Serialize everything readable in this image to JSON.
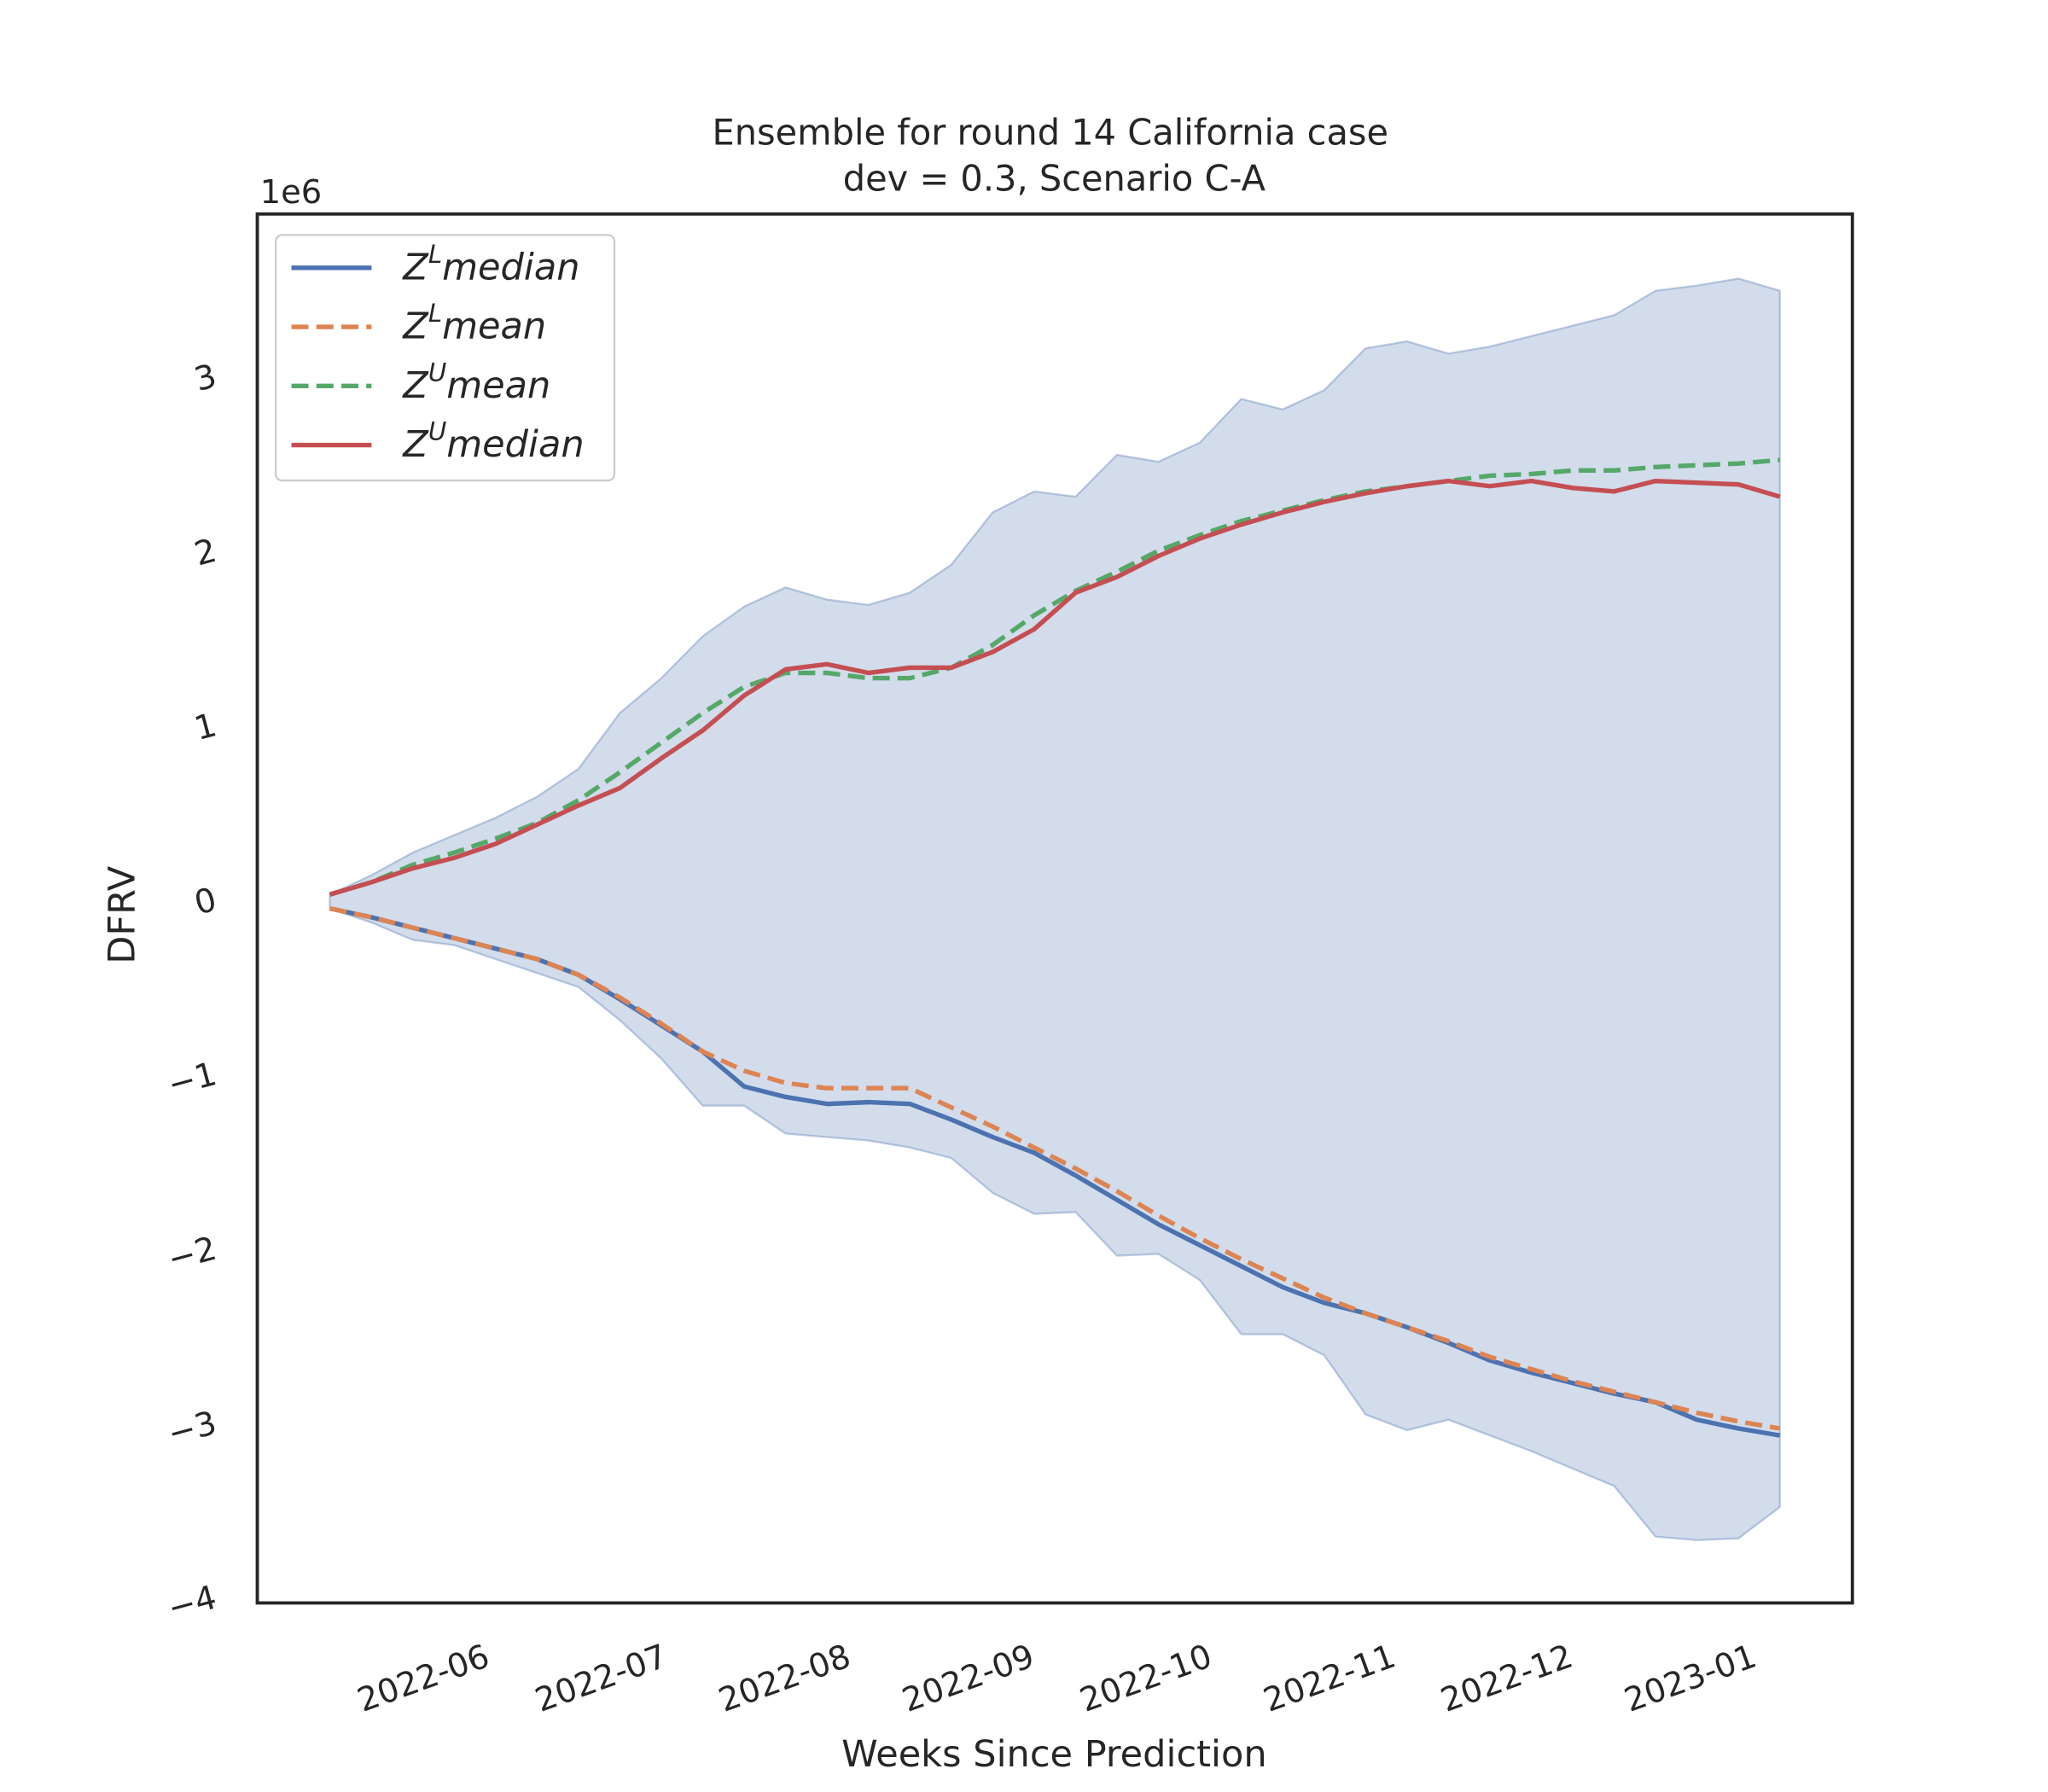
{
  "chart_data": {
    "type": "line",
    "title": [
      "Ensemble for round 14 California case",
      "dev = 0.3, Scenario C-A"
    ],
    "x_label": "Weeks Since Prediction",
    "y_label": "DFRV",
    "y_offset_label": "1e6",
    "x": [
      0,
      1,
      2,
      3,
      4,
      5,
      6,
      7,
      8,
      9,
      10,
      11,
      12,
      13,
      14,
      15,
      16,
      17,
      18,
      19,
      20,
      21,
      22,
      23,
      24,
      25,
      26,
      27,
      28,
      29,
      30,
      31,
      32,
      33,
      34,
      35
    ],
    "xlim": [
      -1.75,
      36.75
    ],
    "xticks": [
      {
        "value": 3.83,
        "label": "2022-06"
      },
      {
        "value": 8.12,
        "label": "2022-07"
      },
      {
        "value": 12.55,
        "label": "2022-08"
      },
      {
        "value": 16.98,
        "label": "2022-09"
      },
      {
        "value": 21.27,
        "label": "2022-10"
      },
      {
        "value": 25.7,
        "label": "2022-11"
      },
      {
        "value": 29.98,
        "label": "2022-12"
      },
      {
        "value": 34.41,
        "label": "2023-01"
      }
    ],
    "ylim": [
      -4,
      3.96
    ],
    "yticks": [
      {
        "value": -4,
        "label": "−4"
      },
      {
        "value": -3,
        "label": "−3"
      },
      {
        "value": -2,
        "label": "−2"
      },
      {
        "value": -1,
        "label": "−1"
      },
      0,
      1,
      2,
      3
    ],
    "grid": false,
    "legend": "upper left",
    "band": {
      "color": "#4c72b0",
      "alpha": 0.25,
      "upper": [
        0.06,
        0.17,
        0.3,
        0.4,
        0.5,
        0.62,
        0.78,
        1.1,
        1.3,
        1.54,
        1.71,
        1.82,
        1.75,
        1.72,
        1.79,
        1.95,
        2.25,
        2.37,
        2.34,
        2.58,
        2.54,
        2.65,
        2.9,
        2.84,
        2.95,
        3.19,
        3.23,
        3.16,
        3.2,
        3.26,
        3.32,
        3.38,
        3.52,
        3.55,
        3.59,
        3.52
      ],
      "lower": [
        -0.02,
        -0.1,
        -0.2,
        -0.23,
        -0.31,
        -0.39,
        -0.47,
        -0.66,
        -0.88,
        -1.15,
        -1.15,
        -1.31,
        -1.33,
        -1.35,
        -1.39,
        -1.45,
        -1.65,
        -1.77,
        -1.76,
        -2.01,
        -2.0,
        -2.15,
        -2.46,
        -2.46,
        -2.58,
        -2.92,
        -3.01,
        -2.95,
        -3.04,
        -3.13,
        -3.23,
        -3.33,
        -3.62,
        -3.64,
        -3.63,
        -3.45
      ]
    },
    "series": [
      {
        "name": "ZLmedian",
        "color": "#4c72b0",
        "dashed": false,
        "values": [
          -0.02,
          -0.07,
          -0.13,
          -0.19,
          -0.25,
          -0.31,
          -0.4,
          -0.54,
          -0.69,
          -0.84,
          -1.04,
          -1.1,
          -1.14,
          -1.13,
          -1.14,
          -1.23,
          -1.33,
          -1.42,
          -1.55,
          -1.69,
          -1.83,
          -1.95,
          -2.07,
          -2.19,
          -2.28,
          -2.34,
          -2.42,
          -2.51,
          -2.61,
          -2.68,
          -2.74,
          -2.8,
          -2.85,
          -2.95,
          -3.0,
          -3.04
        ]
      },
      {
        "name": "ZLmean",
        "color": "#dd8452",
        "dashed": true,
        "values": [
          -0.02,
          -0.07,
          -0.13,
          -0.19,
          -0.25,
          -0.31,
          -0.4,
          -0.53,
          -0.68,
          -0.84,
          -0.95,
          -1.02,
          -1.05,
          -1.05,
          -1.05,
          -1.16,
          -1.27,
          -1.39,
          -1.51,
          -1.64,
          -1.78,
          -1.91,
          -2.03,
          -2.14,
          -2.25,
          -2.34,
          -2.42,
          -2.5,
          -2.59,
          -2.66,
          -2.73,
          -2.79,
          -2.85,
          -2.91,
          -2.96,
          -3.0
        ]
      },
      {
        "name": "ZUmean",
        "color": "#55a868",
        "dashed": true,
        "values": [
          0.06,
          0.13,
          0.23,
          0.3,
          0.38,
          0.47,
          0.6,
          0.76,
          0.93,
          1.1,
          1.25,
          1.33,
          1.33,
          1.3,
          1.3,
          1.36,
          1.49,
          1.66,
          1.8,
          1.91,
          2.03,
          2.12,
          2.2,
          2.26,
          2.32,
          2.37,
          2.4,
          2.43,
          2.46,
          2.47,
          2.49,
          2.49,
          2.51,
          2.52,
          2.53,
          2.55
        ]
      },
      {
        "name": "ZUmedian",
        "color": "#c44e52",
        "dashed": false,
        "values": [
          0.06,
          0.13,
          0.21,
          0.27,
          0.35,
          0.46,
          0.57,
          0.67,
          0.84,
          1.0,
          1.2,
          1.35,
          1.38,
          1.33,
          1.36,
          1.36,
          1.45,
          1.58,
          1.79,
          1.88,
          2.0,
          2.1,
          2.18,
          2.25,
          2.31,
          2.36,
          2.4,
          2.43,
          2.4,
          2.43,
          2.39,
          2.37,
          2.43,
          2.42,
          2.41,
          2.34
        ]
      }
    ]
  }
}
